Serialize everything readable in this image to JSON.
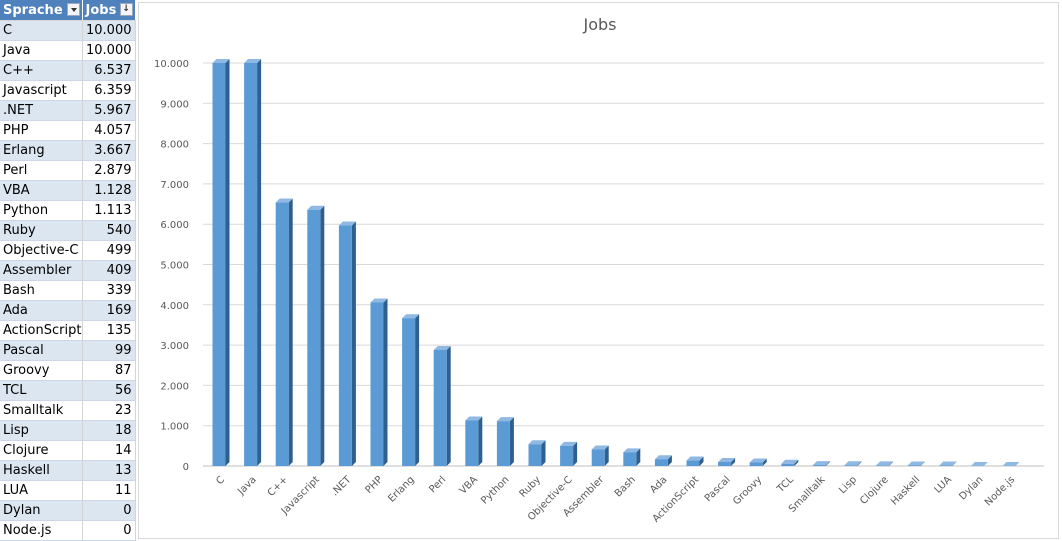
{
  "table": {
    "header": {
      "col1": "Sprache",
      "col2": "Jobs",
      "sort_glyph": "↓"
    }
  },
  "chart_data": {
    "type": "bar",
    "title": "Jobs",
    "xlabel": "",
    "ylabel": "",
    "ylim": [
      0,
      10000
    ],
    "ytick_step": 1000,
    "ytick_labels": [
      "0",
      "1.000",
      "2.000",
      "3.000",
      "4.000",
      "5.000",
      "6.000",
      "7.000",
      "8.000",
      "9.000",
      "10.000"
    ],
    "grid": true,
    "legend": "none",
    "bar_color": "#5b9bd5",
    "categories": [
      "C",
      "Java",
      "C++",
      "Javascript",
      ".NET",
      "PHP",
      "Erlang",
      "Perl",
      "VBA",
      "Python",
      "Ruby",
      "Objective-C",
      "Assembler",
      "Bash",
      "Ada",
      "ActionScript",
      "Pascal",
      "Groovy",
      "TCL",
      "Smalltalk",
      "Lisp",
      "Clojure",
      "Haskell",
      "LUA",
      "Dylan",
      "Node.js"
    ],
    "values": [
      10000,
      10000,
      6537,
      6359,
      5967,
      4057,
      3667,
      2879,
      1128,
      1113,
      540,
      499,
      409,
      339,
      169,
      135,
      99,
      87,
      56,
      23,
      18,
      14,
      13,
      11,
      0,
      0
    ],
    "value_labels": [
      "10.000",
      "10.000",
      "6.537",
      "6.359",
      "5.967",
      "4.057",
      "3.667",
      "2.879",
      "1.128",
      "1.113",
      "540",
      "499",
      "409",
      "339",
      "169",
      "135",
      "99",
      "87",
      "56",
      "23",
      "18",
      "14",
      "13",
      "11",
      "0",
      "0"
    ]
  }
}
